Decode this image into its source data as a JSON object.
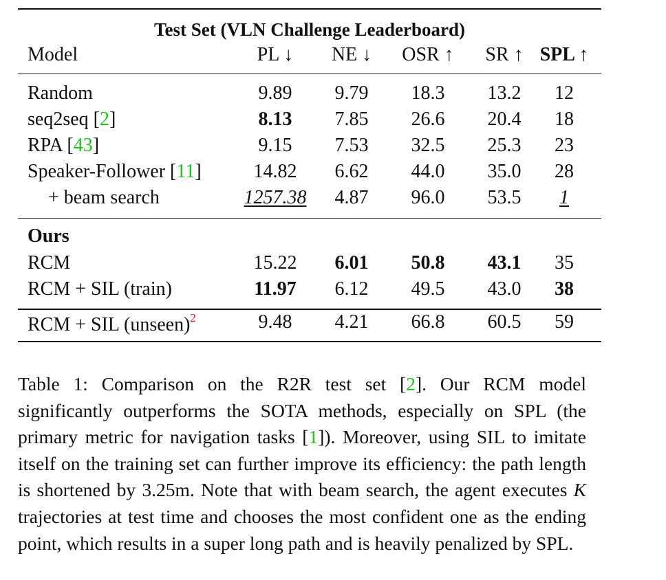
{
  "table": {
    "title": "Test Set (VLN Challenge Leaderboard)",
    "headers": [
      "Model",
      "PL ↓",
      "NE ↓",
      "OSR ↑",
      "SR ↑",
      "SPL ↑"
    ],
    "rows": [
      {
        "model": "Random",
        "ref": "",
        "pl": "9.89",
        "ne": "9.79",
        "osr": "18.3",
        "sr": "13.2",
        "spl": "12"
      },
      {
        "model": "seq2seq [",
        "ref": "2",
        "close": "]",
        "pl": "8.13",
        "ne": "7.85",
        "osr": "26.6",
        "sr": "20.4",
        "spl": "18"
      },
      {
        "model": "RPA [",
        "ref": "43",
        "close": "]",
        "pl": "9.15",
        "ne": "7.53",
        "osr": "32.5",
        "sr": "25.3",
        "spl": "23"
      },
      {
        "model": "Speaker-Follower [",
        "ref": "11",
        "close": "]",
        "pl": "14.82",
        "ne": "6.62",
        "osr": "44.0",
        "sr": "35.0",
        "spl": "28"
      },
      {
        "model": "+ beam search",
        "pl": "1257.38",
        "ne": "4.87",
        "osr": "96.0",
        "sr": "53.5",
        "spl": "1"
      }
    ],
    "ours_label": "Ours",
    "ours_rows": [
      {
        "model": "RCM",
        "pl": "15.22",
        "ne": "6.01",
        "osr": "50.8",
        "sr": "43.1",
        "spl": "35"
      },
      {
        "model": "RCM + SIL (train)",
        "pl": "11.97",
        "ne": "6.12",
        "osr": "49.5",
        "sr": "43.0",
        "spl": "38"
      }
    ],
    "unseen_row": {
      "model": "RCM + SIL (unseen)",
      "footnote": "2",
      "pl": "9.48",
      "ne": "4.21",
      "osr": "66.8",
      "sr": "60.5",
      "spl": "59"
    }
  },
  "caption": {
    "p1": "Table 1: Comparison on the R2R test set [",
    "ref1": "2",
    "p2": "]. Our RCM model significantly outperforms the SOTA methods, especially on SPL (the primary metric for navigation tasks [",
    "ref2": "1",
    "p3": "]). Moreover, using SIL to imitate itself on the training set can further improve its efficiency: the path length is shortened by 3.25m. Note that with beam search, the agent executes ",
    "var": "K",
    "p4": " trajectories at test time and chooses the most confident one as the ending point, which results in a super long path and is heavily penalized by SPL."
  }
}
